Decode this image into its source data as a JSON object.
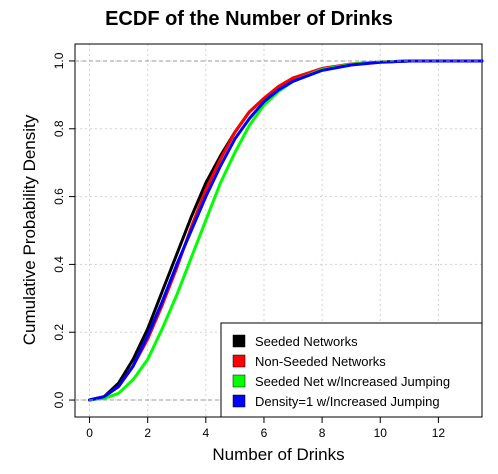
{
  "chart_data": {
    "type": "line",
    "title": "ECDF of the Number of Drinks",
    "xlabel": "Number of Drinks",
    "ylabel": "Cumulative Probability Density",
    "xlim": [
      -0.5,
      13.5
    ],
    "ylim": [
      -0.05,
      1.05
    ],
    "x_ticks": [
      0,
      2,
      4,
      6,
      8,
      10,
      12
    ],
    "y_ticks": [
      0.0,
      0.2,
      0.4,
      0.6,
      0.8,
      1.0
    ],
    "grid": true,
    "legend_position": "bottom-right",
    "series": [
      {
        "name": "Seeded Networks",
        "color": "#000000",
        "x": [
          0,
          0.5,
          1,
          1.5,
          2,
          2.5,
          3,
          3.5,
          4,
          4.5,
          5,
          5.5,
          6,
          6.5,
          7,
          8,
          9,
          10,
          11,
          12,
          13.5
        ],
        "y": [
          0.0,
          0.01,
          0.05,
          0.12,
          0.21,
          0.32,
          0.43,
          0.54,
          0.64,
          0.72,
          0.79,
          0.85,
          0.89,
          0.92,
          0.945,
          0.975,
          0.99,
          0.997,
          1.0,
          1.0,
          1.0
        ]
      },
      {
        "name": "Non-Seeded Networks",
        "color": "#ff0000",
        "x": [
          0,
          0.5,
          1,
          1.5,
          2,
          2.5,
          3,
          3.5,
          4,
          4.5,
          5,
          5.5,
          6,
          6.5,
          7,
          8,
          9,
          10,
          11,
          12,
          13.5
        ],
        "y": [
          0.0,
          0.01,
          0.04,
          0.1,
          0.18,
          0.28,
          0.39,
          0.51,
          0.62,
          0.71,
          0.79,
          0.85,
          0.89,
          0.925,
          0.95,
          0.978,
          0.991,
          0.997,
          1.0,
          1.0,
          1.0
        ]
      },
      {
        "name": "Seeded Net w/Increased Jumping",
        "color": "#00ff00",
        "x": [
          0,
          0.5,
          1,
          1.5,
          2,
          2.5,
          3,
          3.5,
          4,
          4.5,
          5,
          5.5,
          6,
          6.5,
          7,
          8,
          9,
          10,
          11,
          12,
          13.5
        ],
        "y": [
          0.0,
          0.005,
          0.02,
          0.06,
          0.12,
          0.21,
          0.31,
          0.42,
          0.53,
          0.64,
          0.73,
          0.81,
          0.87,
          0.91,
          0.94,
          0.975,
          0.99,
          0.997,
          1.0,
          1.0,
          1.0
        ]
      },
      {
        "name": "Density=1 w/Increased Jumping",
        "color": "#0000ff",
        "x": [
          0,
          0.5,
          1,
          1.5,
          2,
          2.5,
          3,
          3.5,
          4,
          4.5,
          5,
          5.5,
          6,
          6.5,
          7,
          8,
          9,
          10,
          11,
          12,
          13.5
        ],
        "y": [
          0.0,
          0.01,
          0.04,
          0.1,
          0.19,
          0.29,
          0.4,
          0.5,
          0.6,
          0.69,
          0.77,
          0.83,
          0.88,
          0.915,
          0.94,
          0.972,
          0.988,
          0.996,
          1.0,
          1.0,
          1.0
        ]
      }
    ]
  }
}
